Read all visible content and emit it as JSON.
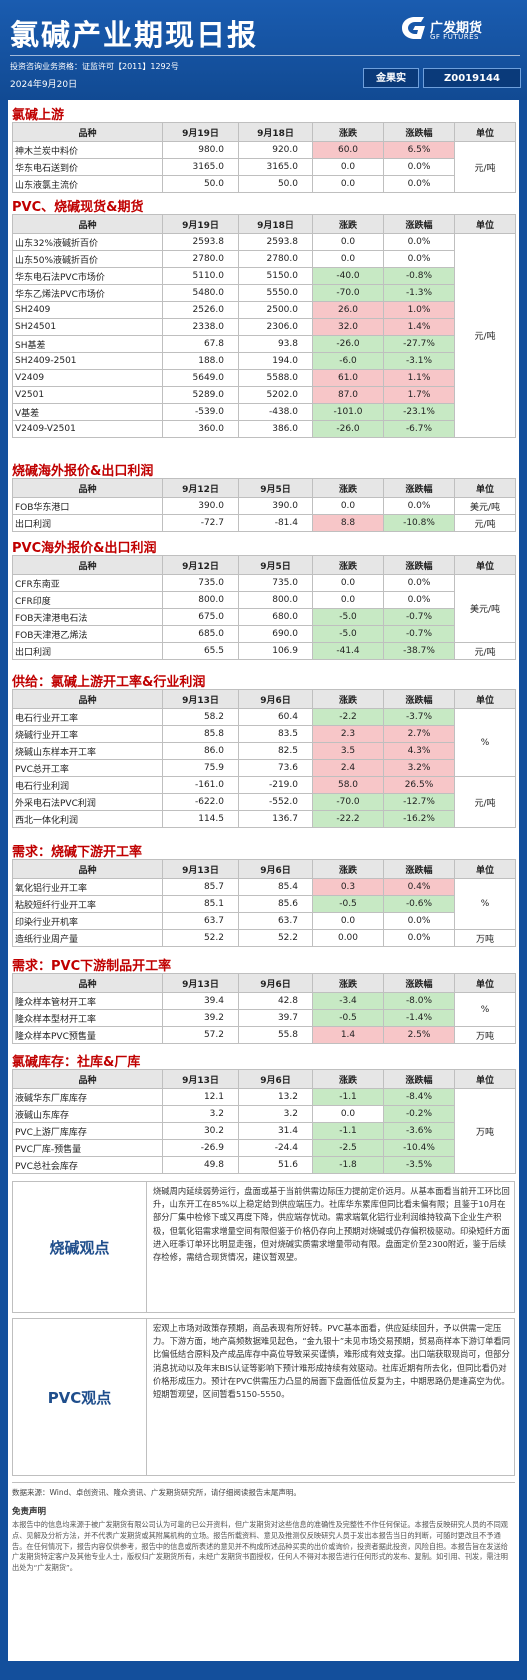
{
  "header": {
    "title": "氯碱产业期现日报",
    "logo_cn": "广发期货",
    "logo_en": "GF FUTURES",
    "license": "投资咨询业务资格：证监许可【2011】1292号",
    "date": "2024年9月20日",
    "analyst_name": "金果实",
    "analyst_id": "Z0019144"
  },
  "columns": {
    "variety": "品种",
    "change": "涨跌",
    "change_pct": "涨跌幅",
    "unit": "单位"
  },
  "sections": [
    {
      "title": "氯碱上游",
      "dates": [
        "9月19日",
        "9月18日"
      ],
      "units": [
        "元/吨"
      ],
      "rows": [
        [
          "神木兰炭中料价",
          "980.0",
          "920.0",
          "60.0",
          "6.5%"
        ],
        [
          "华东电石送到价",
          "3165.0",
          "3165.0",
          "0.0",
          "0.0%"
        ],
        [
          "山东液氯主流价",
          "50.0",
          "50.0",
          "0.0",
          "0.0%"
        ]
      ]
    },
    {
      "title": "PVC、烧碱现货&期货",
      "dates": [
        "9月19日",
        "9月18日"
      ],
      "units": [
        "元/吨"
      ],
      "rows": [
        [
          "山东32%液碱折百价",
          "2593.8",
          "2593.8",
          "0.0",
          "0.0%"
        ],
        [
          "山东50%液碱折百价",
          "2780.0",
          "2780.0",
          "0.0",
          "0.0%"
        ],
        [
          "华东电石法PVC市场价",
          "5110.0",
          "5150.0",
          "-40.0",
          "-0.8%"
        ],
        [
          "华东乙烯法PVC市场价",
          "5480.0",
          "5550.0",
          "-70.0",
          "-1.3%"
        ],
        [
          "SH2409",
          "2526.0",
          "2500.0",
          "26.0",
          "1.0%"
        ],
        [
          "SH24501",
          "2338.0",
          "2306.0",
          "32.0",
          "1.4%"
        ],
        [
          "SH基差",
          "67.8",
          "93.8",
          "-26.0",
          "-27.7%"
        ],
        [
          "SH2409-2501",
          "188.0",
          "194.0",
          "-6.0",
          "-3.1%"
        ],
        [
          "V2409",
          "5649.0",
          "5588.0",
          "61.0",
          "1.1%"
        ],
        [
          "V2501",
          "5289.0",
          "5202.0",
          "87.0",
          "1.7%"
        ],
        [
          "V基差",
          "-539.0",
          "-438.0",
          "-101.0",
          "-23.1%"
        ],
        [
          "V2409-V2501",
          "360.0",
          "386.0",
          "-26.0",
          "-6.7%"
        ]
      ]
    },
    {
      "title": "烧碱海外报价&出口利润",
      "dates": [
        "9月12日",
        "9月5日"
      ],
      "units": [
        "美元/吨",
        "元/吨"
      ],
      "rows": [
        [
          "FOB华东港口",
          "390.0",
          "390.0",
          "0.0",
          "0.0%"
        ],
        [
          "出口利润",
          "-72.7",
          "-81.4",
          "8.8",
          "-10.8%"
        ]
      ]
    },
    {
      "title": "PVC海外报价&出口利润",
      "dates": [
        "9月12日",
        "9月5日"
      ],
      "units": [
        "美元/吨",
        "元/吨"
      ],
      "rows": [
        [
          "CFR东南亚",
          "735.0",
          "735.0",
          "0.0",
          "0.0%"
        ],
        [
          "CFR印度",
          "800.0",
          "800.0",
          "0.0",
          "0.0%"
        ],
        [
          "FOB天津港电石法",
          "675.0",
          "680.0",
          "-5.0",
          "-0.7%"
        ],
        [
          "FOB天津港乙烯法",
          "685.0",
          "690.0",
          "-5.0",
          "-0.7%"
        ],
        [
          "出口利润",
          "65.5",
          "106.9",
          "-41.4",
          "-38.7%"
        ]
      ]
    },
    {
      "title": "供给：氯碱上游开工率&行业利润",
      "dates": [
        "9月13日",
        "9月6日"
      ],
      "units": [
        "%",
        "元/吨"
      ],
      "rows": [
        [
          "电石行业开工率",
          "58.2",
          "60.4",
          "-2.2",
          "-3.7%"
        ],
        [
          "烧碱行业开工率",
          "85.8",
          "83.5",
          "2.3",
          "2.7%"
        ],
        [
          "烧碱山东样本开工率",
          "86.0",
          "82.5",
          "3.5",
          "4.3%"
        ],
        [
          "PVC总开工率",
          "75.9",
          "73.6",
          "2.4",
          "3.2%"
        ],
        [
          "电石行业利润",
          "-161.0",
          "-219.0",
          "58.0",
          "26.5%"
        ],
        [
          "外采电石法PVC利润",
          "-622.0",
          "-552.0",
          "-70.0",
          "-12.7%"
        ],
        [
          "西北一体化利润",
          "114.5",
          "136.7",
          "-22.2",
          "-16.2%"
        ]
      ]
    },
    {
      "title": "需求：烧碱下游开工率",
      "dates": [
        "9月13日",
        "9月6日"
      ],
      "units": [
        "%",
        "万吨"
      ],
      "rows": [
        [
          "氧化铝行业开工率",
          "85.7",
          "85.4",
          "0.3",
          "0.4%"
        ],
        [
          "粘胶短纤行业开工率",
          "85.1",
          "85.6",
          "-0.5",
          "-0.6%"
        ],
        [
          "印染行业开机率",
          "63.7",
          "63.7",
          "0.0",
          "0.0%"
        ],
        [
          "造纸行业周产量",
          "52.2",
          "52.2",
          "0.00",
          "0.0%"
        ]
      ]
    },
    {
      "title": "需求：PVC下游制品开工率",
      "dates": [
        "9月13日",
        "9月6日"
      ],
      "units": [
        "%",
        "万吨"
      ],
      "rows": [
        [
          "隆众样本管材开工率",
          "39.4",
          "42.8",
          "-3.4",
          "-8.0%"
        ],
        [
          "隆众样本型材开工率",
          "39.2",
          "39.7",
          "-0.5",
          "-1.4%"
        ],
        [
          "隆众样本PVC预售量",
          "57.2",
          "55.8",
          "1.4",
          "2.5%"
        ]
      ]
    },
    {
      "title": "氯碱库存：社库&厂库",
      "dates": [
        "9月13日",
        "9月6日"
      ],
      "units": [
        "万吨"
      ],
      "rows": [
        [
          "液碱华东厂库库存",
          "12.1",
          "13.2",
          "-1.1",
          "-8.4%"
        ],
        [
          "液碱山东库存",
          "3.2",
          "3.2",
          "0.0",
          "-0.2%"
        ],
        [
          "PVC上游厂库库存",
          "30.2",
          "31.4",
          "-1.1",
          "-3.6%"
        ],
        [
          "PVC厂库-预售量",
          "-26.9",
          "-24.4",
          "-2.5",
          "-10.4%"
        ],
        [
          "PVC总社会库存",
          "49.8",
          "51.6",
          "-1.8",
          "-3.5%"
        ]
      ]
    }
  ],
  "views": [
    {
      "label": "烧碱观点",
      "text": "烧碱周内延续弱势运行，盘面或基于当前供需边际压力提前定价远月。从基本面看当前开工环比回升，山东开工在85%以上稳定给到供应端压力。社库华东累库但同比看未偏有限；且鉴于10月在部分厂集中检修下或又再度下降，供应端存忧动。需求端氧化铝行业利润维持较高下企业生产积极，但氧化铝需求增量空间有限但鉴于价格仍存向上预期对烧碱或仍存偏积极驱动。印染短纤方面进入旺季订单环比明显走强，但对烧碱实质需求增量带动有限。盘面定价至2300附近，鉴于后续存检修，需结合现货情况，建议暂观望。"
    },
    {
      "label": "PVC观点",
      "text": "宏观上市场对政策存预期，商品表现有所好转。PVC基本面看，供应延续回升，予以供需一定压力。下游方面，地产高频数据难见起色，“金九银十”未见市场交易预期，贸易商样本下游订单看同比偏低结合原料及产成品库存中高位导致采买谨慎，难形成有效支撑。出口端获取现尚可，但部分消息扰动以及年末BIS认证等影响下预计难形成持续有效驱动。社库近期有所去化，但同比看仍对价格形成压力。预计在PVC供需压力凸显的局面下盘面低位反复为主，中期思路仍是逢高空为优。短期暂观望，区间暂看5150-5550。"
    }
  ],
  "footer": {
    "source": "数据来源：Wind、卓创资讯、隆众资讯、广发期货研究所，请仔细阅读报告末尾声明。",
    "disclaimer_title": "免责声明",
    "disclaimer": "本报告中的信息均来源于被广发期货有限公司认为可靠的已公开资料，但广发期货对这些信息的准确性及完整性不作任何保证。本报告反映研究人员的不同观点、见解及分析方法，并不代表广发期货或其附属机构的立场。报告所载资料、意见及推测仅反映研究人员于发出本报告当日的判断，可随时更改且不予通告。在任何情况下，报告内容仅供参考，报告中的信息或所表述的意见并不构成所述品种买卖的出价或询价，投资者据此投资，风险自担。本报告旨在发送给广发期货特定客户及其他专业人士，版权归广发期货所有，未经广发期货书面授权，任何人不得对本报告进行任何形式的发布、复制。如引用、刊发，需注明出处为“广发期货”。"
  }
}
